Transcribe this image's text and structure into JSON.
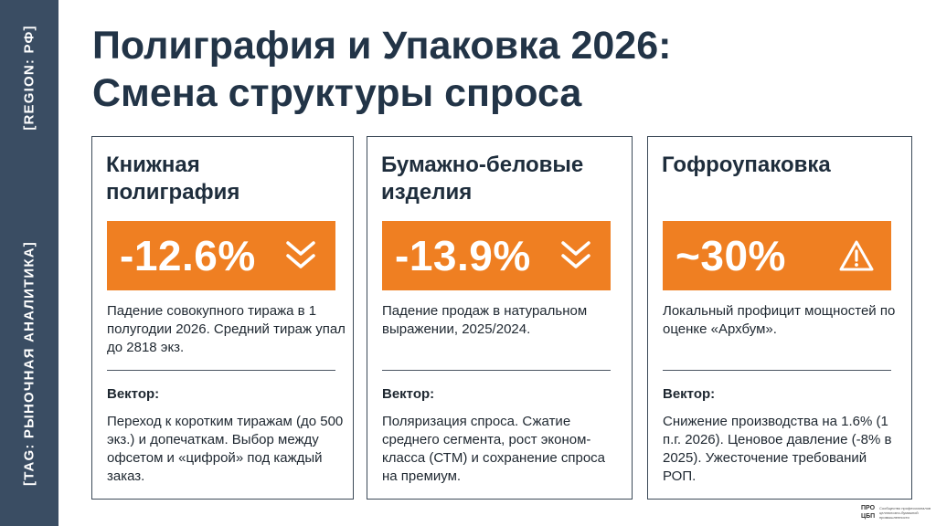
{
  "sidebar": {
    "region_tag": "[REGION: РФ]",
    "topic_tag": "[TAG: РЫНОЧНАЯ АНАЛИТИКА]"
  },
  "header": {
    "title_line1": "Полиграфия и Упаковка 2026:",
    "title_line2": "Смена структуры спроса"
  },
  "colors": {
    "sidebar": "#3a4d63",
    "accent": "#ef7f22",
    "title": "#223447"
  },
  "cards": [
    {
      "title_line1": "Книжная",
      "title_line2": "полиграфия",
      "stat": "-12.6%",
      "icon": "double-chevron-down-icon",
      "description": "Падение совокупного тиража в 1 полугодии 2026. Средний тираж упал до 2818 экз.",
      "vector_label": "Вектор:",
      "vector_text": "Переход к коротким тиражам (до 500 экз.) и допечаткам. Выбор между офсетом и «цифрой» под каждый заказ."
    },
    {
      "title_line1": "Бумажно-беловые",
      "title_line2": "изделия",
      "stat": "-13.9%",
      "icon": "double-chevron-down-icon",
      "description": "Падение продаж в натуральном выражении, 2025/2024.",
      "vector_label": "Вектор:",
      "vector_text": "Поляризация спроса. Сжатие среднего сегмента, рост эконом-класса (СТМ) и сохранение спроса на премиум."
    },
    {
      "title_line1": "Гофроупаковка",
      "title_line2": "",
      "stat": "~30%",
      "icon": "warning-triangle-icon",
      "description": "Локальный профицит мощностей по оценке «Архбум».",
      "vector_label": "Вектор:",
      "vector_text": "Снижение производства на 1.6% (1 п.г. 2026). Ценовое давление (-8% в 2025). Ужесточение требований РОП."
    }
  ],
  "footer": {
    "logo_mark": "ПРО ЦБП",
    "logo_text": "Сообщество профессионалов целлюлозно-бумажной промышленности"
  }
}
